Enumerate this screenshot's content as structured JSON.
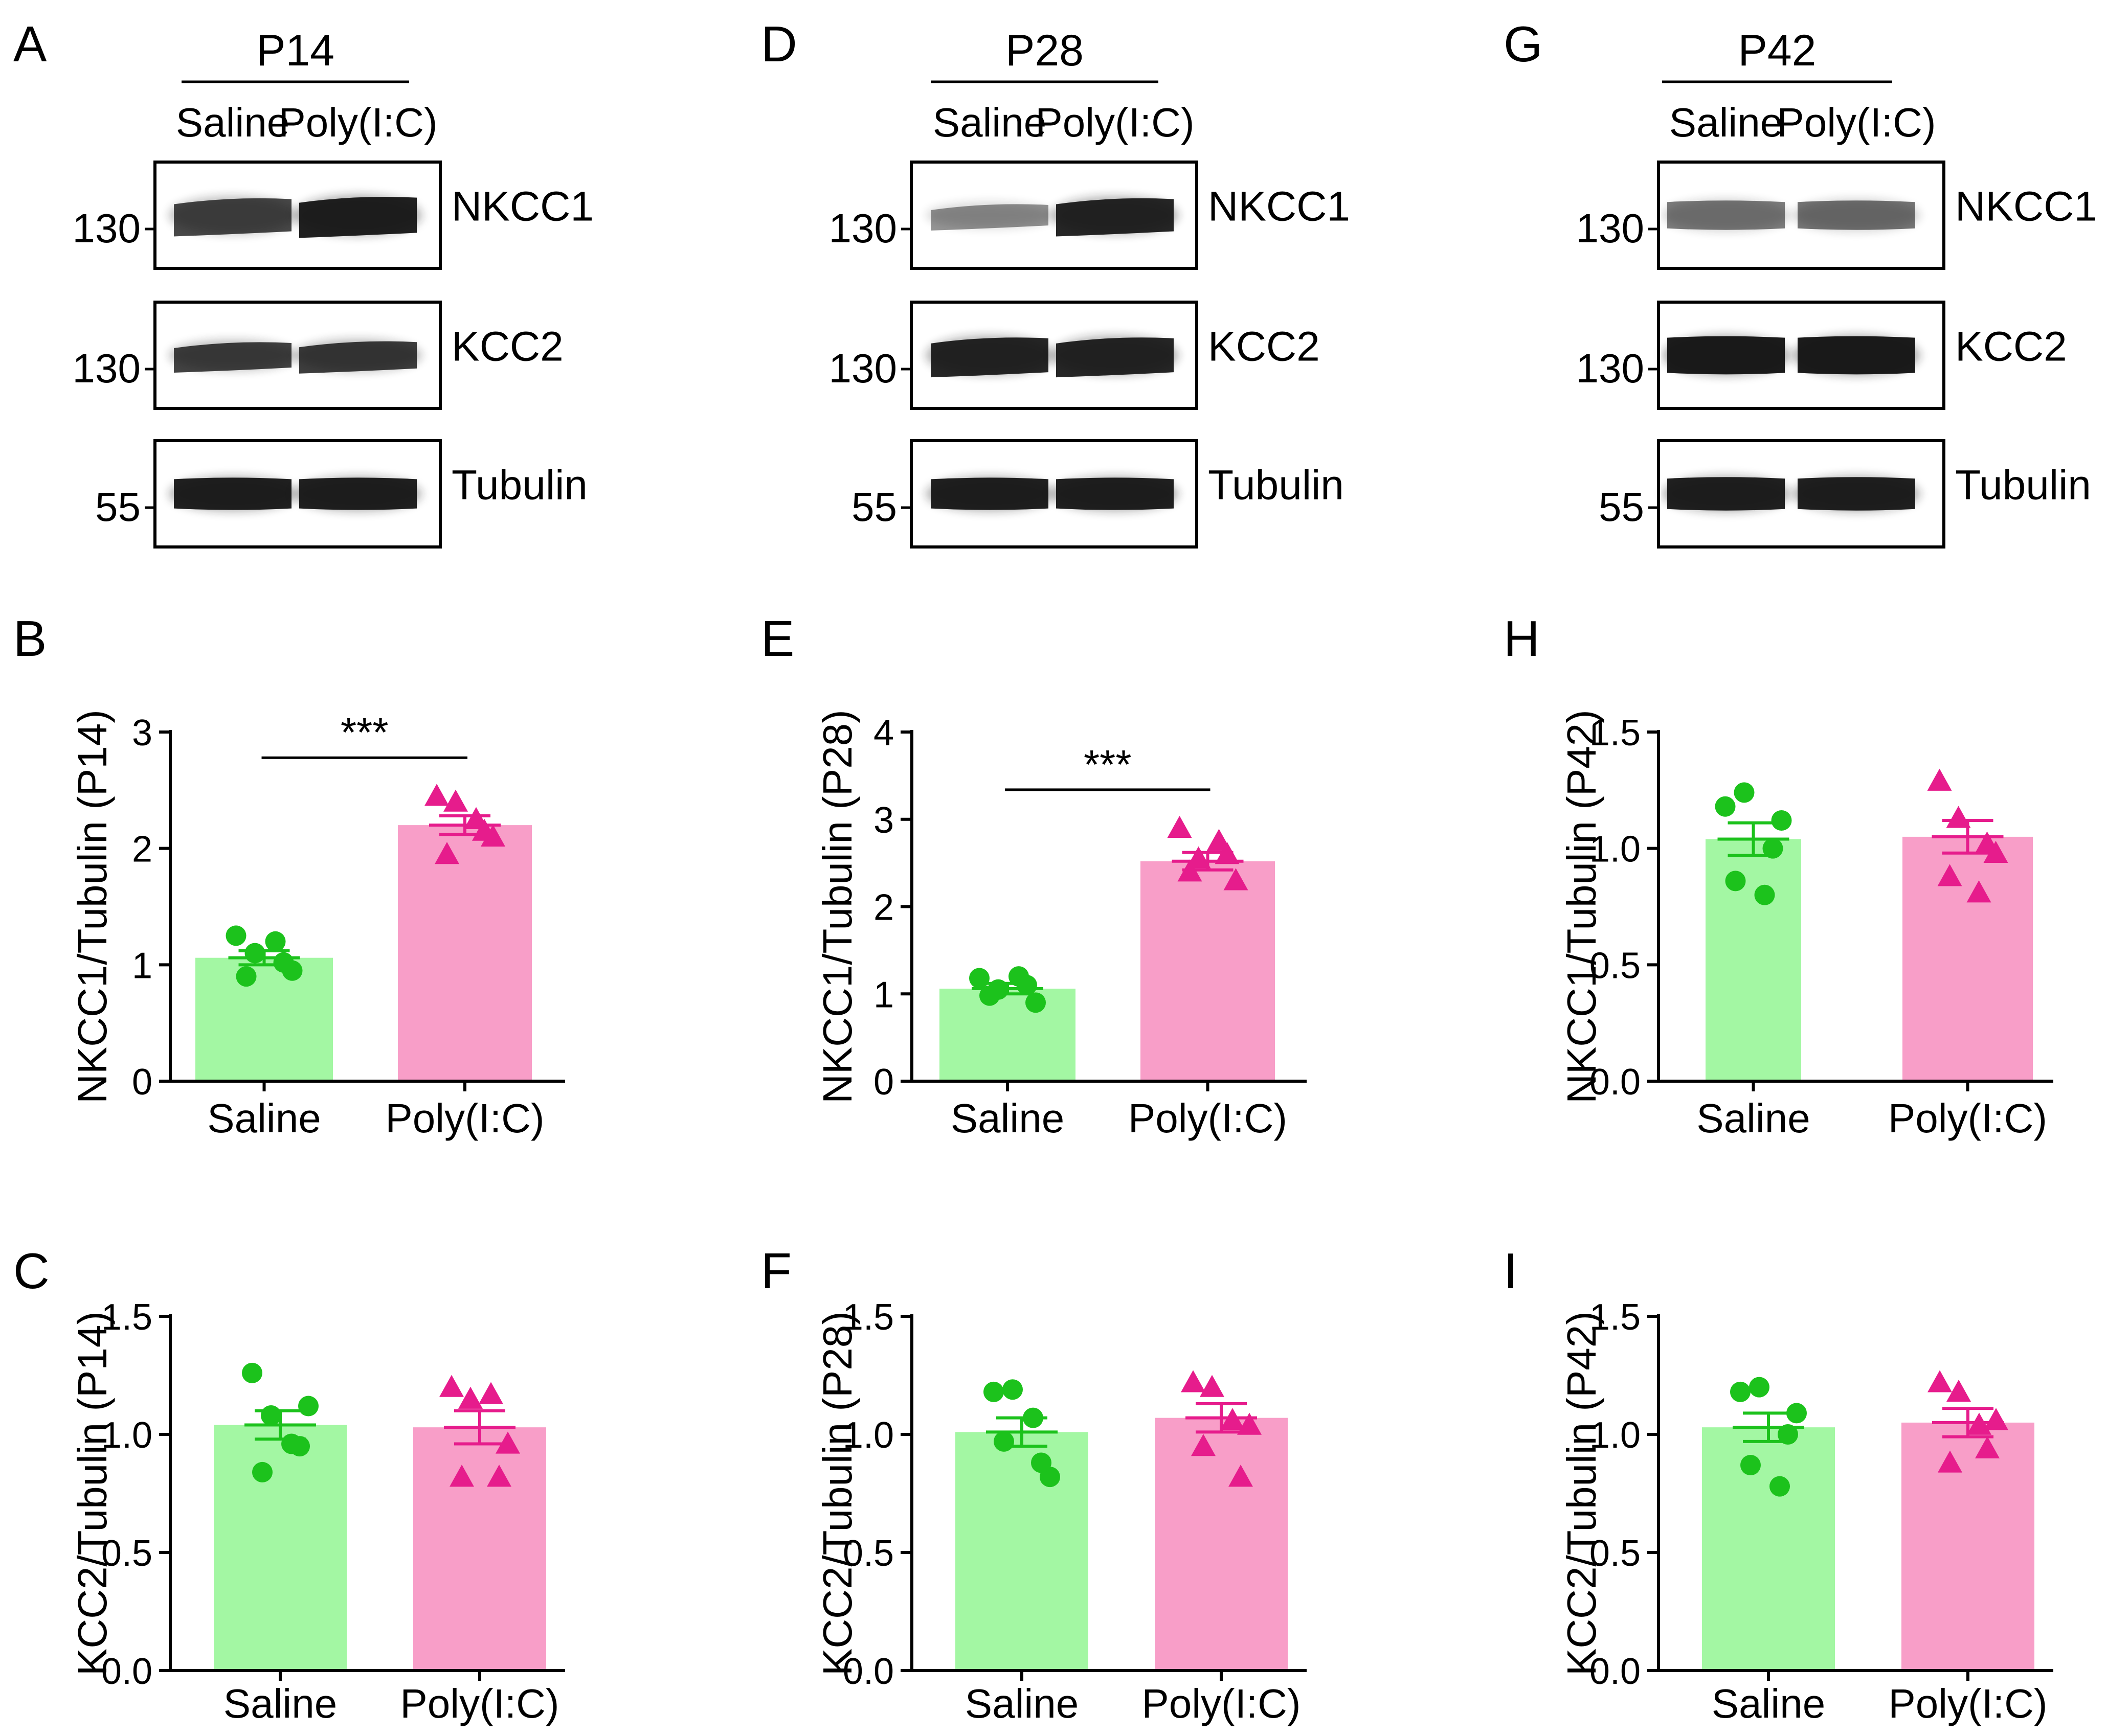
{
  "conditions": [
    "Saline",
    "Poly(I:C)"
  ],
  "colors": {
    "saline_bar": "#a3f7a3",
    "saline_point": "#1cc21c",
    "polyic_bar": "#f89ec8",
    "polyic_point": "#e61c8c",
    "axis": "#000000",
    "band": "#141414"
  },
  "blots": [
    {
      "panel": "A",
      "age": "P14",
      "rows": [
        {
          "protein": "NKCC1",
          "mw": "130",
          "intensity": [
            0.78,
            0.95
          ],
          "thickness": [
            0.55,
            0.6
          ],
          "tilt": true
        },
        {
          "protein": "KCC2",
          "mw": "130",
          "intensity": [
            0.8,
            0.82
          ],
          "thickness": [
            0.42,
            0.45
          ],
          "tilt": true
        },
        {
          "protein": "Tubulin",
          "mw": "55",
          "intensity": [
            0.95,
            0.95
          ],
          "thickness": [
            0.5,
            0.5
          ],
          "tilt": false
        }
      ]
    },
    {
      "panel": "D",
      "age": "P28",
      "rows": [
        {
          "protein": "NKCC1",
          "mw": "130",
          "intensity": [
            0.45,
            0.92
          ],
          "thickness": [
            0.35,
            0.55
          ],
          "tilt": true
        },
        {
          "protein": "KCC2",
          "mw": "130",
          "intensity": [
            0.92,
            0.92
          ],
          "thickness": [
            0.58,
            0.58
          ],
          "tilt": true
        },
        {
          "protein": "Tubulin",
          "mw": "55",
          "intensity": [
            0.95,
            0.95
          ],
          "thickness": [
            0.5,
            0.5
          ],
          "tilt": false
        }
      ]
    },
    {
      "panel": "G",
      "age": "P42",
      "rows": [
        {
          "protein": "NKCC1",
          "mw": "130",
          "intensity": [
            0.55,
            0.58
          ],
          "thickness": [
            0.45,
            0.45
          ],
          "tilt": false
        },
        {
          "protein": "KCC2",
          "mw": "130",
          "intensity": [
            0.97,
            0.97
          ],
          "thickness": [
            0.6,
            0.6
          ],
          "tilt": false
        },
        {
          "protein": "Tubulin",
          "mw": "55",
          "intensity": [
            0.95,
            0.95
          ],
          "thickness": [
            0.52,
            0.52
          ],
          "tilt": false
        }
      ]
    }
  ],
  "chart_data": [
    {
      "panel": "B",
      "type": "bar",
      "ylabel": "NKCC1/Tubulin  (P14)",
      "ylim": [
        0,
        3
      ],
      "yticks": [
        "0",
        "1",
        "2",
        "3"
      ],
      "categories": [
        "Saline",
        "Poly(I:C)"
      ],
      "values": [
        1.06,
        2.2
      ],
      "sem": [
        0.06,
        0.08
      ],
      "significance": "***",
      "points": [
        [
          1.25,
          1.1,
          1.2,
          0.95,
          0.9,
          1.02
        ],
        [
          2.45,
          2.4,
          2.25,
          2.1,
          1.95,
          2.15
        ]
      ]
    },
    {
      "panel": "E",
      "type": "bar",
      "ylabel": "NKCC1/Tubulin  (P28)",
      "ylim": [
        0,
        4
      ],
      "yticks": [
        "0",
        "1",
        "2",
        "3",
        "4"
      ],
      "categories": [
        "Saline",
        "Poly(I:C)"
      ],
      "values": [
        1.06,
        2.52
      ],
      "sem": [
        0.06,
        0.1
      ],
      "significance": "***",
      "points": [
        [
          1.18,
          1.05,
          1.2,
          0.9,
          0.98,
          1.1
        ],
        [
          2.9,
          2.55,
          2.75,
          2.3,
          2.4,
          2.6
        ]
      ]
    },
    {
      "panel": "H",
      "type": "bar",
      "ylabel": "NKCC1/Tubulin  (P42)",
      "ylim": [
        0,
        1.5
      ],
      "yticks": [
        "0.0",
        "0.5",
        "1.0",
        "1.5"
      ],
      "categories": [
        "Saline",
        "Poly(I:C)"
      ],
      "values": [
        1.04,
        1.05
      ],
      "sem": [
        0.07,
        0.07
      ],
      "significance": "",
      "points": [
        [
          1.18,
          1.24,
          0.8,
          1.12,
          0.86,
          1.0
        ],
        [
          1.29,
          1.13,
          0.81,
          0.98,
          0.88,
          1.02
        ]
      ]
    },
    {
      "panel": "C",
      "type": "bar",
      "ylabel": "KCC2/Tubulin  (P14)",
      "ylim": [
        0,
        1.5
      ],
      "yticks": [
        "0.0",
        "0.5",
        "1.0",
        "1.5"
      ],
      "categories": [
        "Saline",
        "Poly(I:C)"
      ],
      "values": [
        1.04,
        1.03
      ],
      "sem": [
        0.06,
        0.07
      ],
      "significance": "",
      "points": [
        [
          1.26,
          1.08,
          0.96,
          1.12,
          0.84,
          0.95
        ],
        [
          1.2,
          1.15,
          1.17,
          0.96,
          0.82,
          0.82
        ]
      ]
    },
    {
      "panel": "F",
      "type": "bar",
      "ylabel": "KCC2/Tubulin  (P28)",
      "ylim": [
        0,
        1.5
      ],
      "yticks": [
        "0.0",
        "0.5",
        "1.0",
        "1.5"
      ],
      "categories": [
        "Saline",
        "Poly(I:C)"
      ],
      "values": [
        1.01,
        1.07
      ],
      "sem": [
        0.06,
        0.06
      ],
      "significance": "",
      "points": [
        [
          1.18,
          1.19,
          1.07,
          0.82,
          0.97,
          0.88
        ],
        [
          1.22,
          1.2,
          1.06,
          1.04,
          0.95,
          0.82
        ]
      ]
    },
    {
      "panel": "I",
      "type": "bar",
      "ylabel": "KCC2/Tubulin  (P42)",
      "ylim": [
        0,
        1.5
      ],
      "yticks": [
        "0.0",
        "0.5",
        "1.0",
        "1.5"
      ],
      "categories": [
        "Saline",
        "Poly(I:C)"
      ],
      "values": [
        1.03,
        1.05
      ],
      "sem": [
        0.06,
        0.06
      ],
      "significance": "",
      "points": [
        [
          1.18,
          1.2,
          0.78,
          1.09,
          0.87,
          1.0
        ],
        [
          1.22,
          1.18,
          1.04,
          1.06,
          0.88,
          0.94
        ]
      ]
    }
  ]
}
